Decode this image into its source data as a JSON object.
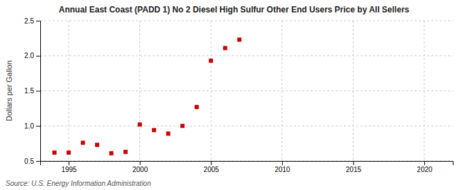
{
  "chart_data": {
    "type": "scatter",
    "title": "Annual East Coast (PADD 1) No 2 Diesel High Sulfur Other End Users Price by All Sellers",
    "ylabel": "Dollars per Gallon",
    "source": "Source: U.S. Energy Information Administration",
    "x": [
      1994,
      1995,
      1996,
      1997,
      1998,
      1999,
      2000,
      2001,
      2002,
      2003,
      2004,
      2005,
      2006,
      2007
    ],
    "values": [
      0.62,
      0.62,
      0.76,
      0.73,
      0.61,
      0.63,
      1.02,
      0.94,
      0.89,
      1.0,
      1.27,
      1.93,
      2.11,
      2.23
    ],
    "color": "#cc0000",
    "marker": "square",
    "xlim": [
      1993,
      2022
    ],
    "ylim": [
      0.5,
      2.5
    ],
    "xticks": [
      1995,
      2000,
      2005,
      2010,
      2015,
      2020
    ],
    "yticks": [
      0.5,
      {
        "value": 1.0,
        "label": "1.0"
      },
      1.5,
      {
        "value": 2.0,
        "label": "2.0"
      },
      2.5
    ],
    "grid": true
  }
}
